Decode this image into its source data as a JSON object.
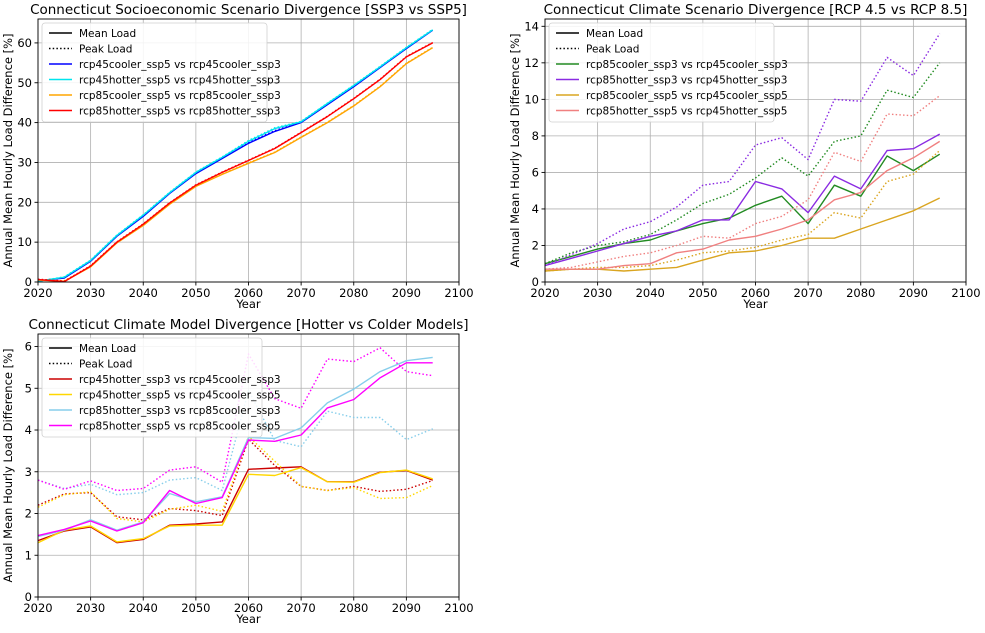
{
  "chart_data": [
    {
      "type": "line",
      "title": "Connecticut Socioeconomic Scenario Divergence [SSP3 vs SSP5]",
      "xlabel": "Year",
      "ylabel": "Annual Mean Hourly Load Difference [%]",
      "xlim": [
        2020,
        2100
      ],
      "ylim": [
        0,
        66
      ],
      "xticks": [
        2020,
        2030,
        2040,
        2050,
        2060,
        2070,
        2080,
        2090,
        2100
      ],
      "yticks": [
        0,
        10,
        20,
        30,
        40,
        50,
        60
      ],
      "grid": true,
      "legend_position": "upper-left",
      "legend": [
        {
          "label": "Mean Load",
          "style": "solid",
          "color": "#000000"
        },
        {
          "label": "Peak Load",
          "style": "dotted",
          "color": "#000000"
        },
        {
          "label": "rcp45cooler_ssp5 vs rcp45cooler_ssp3",
          "color": "#0000ff"
        },
        {
          "label": "rcp45hotter_ssp5 vs rcp45hotter_ssp3",
          "color": "#00e5ee"
        },
        {
          "label": "rcp85cooler_ssp5 vs rcp85cooler_ssp3",
          "color": "#ffa500"
        },
        {
          "label": "rcp85hotter_ssp5 vs rcp85hotter_ssp3",
          "color": "#ff0000"
        }
      ],
      "x": [
        2020,
        2025,
        2030,
        2035,
        2040,
        2045,
        2050,
        2055,
        2060,
        2065,
        2070,
        2075,
        2080,
        2085,
        2090,
        2095
      ],
      "series": [
        {
          "name": "rcp45cooler_ssp5 vs rcp45cooler_ssp3",
          "metric": "mean",
          "color": "#0000ff",
          "values": [
            0.3,
            1.0,
            5.2,
            11.5,
            16.5,
            22.2,
            27.2,
            31.0,
            34.8,
            37.8,
            40.0,
            44.5,
            49.0,
            53.8,
            58.6,
            63.2
          ]
        },
        {
          "name": "rcp45cooler_ssp5 vs rcp45cooler_ssp3",
          "metric": "peak",
          "color": "#0000ff",
          "values": [
            0.3,
            1.1,
            5.3,
            11.6,
            16.6,
            22.3,
            27.3,
            31.2,
            35.0,
            38.0,
            40.1,
            44.6,
            49.1,
            53.9,
            58.7,
            63.3
          ]
        },
        {
          "name": "rcp45hotter_ssp5 vs rcp45hotter_ssp3",
          "metric": "mean",
          "color": "#00e5ee",
          "values": [
            0.2,
            1.2,
            5.4,
            11.7,
            16.8,
            22.4,
            27.5,
            31.3,
            35.3,
            38.5,
            40.2,
            44.8,
            49.3,
            54.0,
            58.8,
            63.3
          ]
        },
        {
          "name": "rcp45hotter_ssp5 vs rcp45hotter_ssp3",
          "metric": "peak",
          "color": "#00e5ee",
          "values": [
            0.2,
            1.3,
            5.5,
            11.8,
            16.9,
            22.5,
            27.6,
            31.4,
            35.5,
            38.7,
            40.3,
            44.9,
            49.4,
            54.1,
            58.9,
            63.4
          ]
        },
        {
          "name": "rcp85cooler_ssp5 vs rcp85cooler_ssp3",
          "metric": "mean",
          "color": "#ffa500",
          "values": [
            0.5,
            0.2,
            3.8,
            9.8,
            14.2,
            19.5,
            24.0,
            27.0,
            29.8,
            32.5,
            36.3,
            40.0,
            44.2,
            49.0,
            54.8,
            58.8
          ]
        },
        {
          "name": "rcp85cooler_ssp5 vs rcp85cooler_ssp3",
          "metric": "peak",
          "color": "#ffa500",
          "values": [
            0.6,
            0.3,
            3.9,
            9.9,
            14.3,
            19.6,
            24.1,
            27.1,
            29.9,
            32.6,
            36.4,
            40.1,
            44.3,
            49.1,
            54.9,
            58.9
          ]
        },
        {
          "name": "rcp85hotter_ssp5 vs rcp85hotter_ssp3",
          "metric": "mean",
          "color": "#ff0000",
          "values": [
            0.6,
            0.1,
            4.0,
            10.0,
            14.5,
            19.8,
            24.3,
            27.5,
            30.5,
            33.5,
            37.5,
            41.5,
            46.0,
            50.8,
            56.5,
            60.0
          ]
        },
        {
          "name": "rcp85hotter_ssp5 vs rcp85hotter_ssp3",
          "metric": "peak",
          "color": "#ff0000",
          "values": [
            0.7,
            0.2,
            4.1,
            10.1,
            14.6,
            19.9,
            24.4,
            27.6,
            30.6,
            33.6,
            37.6,
            41.6,
            46.1,
            50.9,
            56.6,
            60.1
          ]
        }
      ]
    },
    {
      "type": "line",
      "title": "Connecticut Climate Scenario Divergence [RCP 4.5 vs RCP 8.5]",
      "xlabel": "Year",
      "ylabel": "Annual Mean Hourly Load Difference [%]",
      "xlim": [
        2020,
        2100
      ],
      "ylim": [
        0,
        14.4
      ],
      "xticks": [
        2020,
        2030,
        2040,
        2050,
        2060,
        2070,
        2080,
        2090,
        2100
      ],
      "yticks": [
        0,
        2,
        4,
        6,
        8,
        10,
        12,
        14
      ],
      "grid": true,
      "legend_position": "upper-left",
      "legend": [
        {
          "label": "Mean Load",
          "style": "solid",
          "color": "#000000"
        },
        {
          "label": "Peak Load",
          "style": "dotted",
          "color": "#000000"
        },
        {
          "label": "rcp85cooler_ssp3 vs rcp45cooler_ssp3",
          "color": "#228b22"
        },
        {
          "label": "rcp85hotter_ssp3 vs rcp45hotter_ssp3",
          "color": "#8a2be2"
        },
        {
          "label": "rcp85cooler_ssp5 vs rcp45cooler_ssp5",
          "color": "#daa520"
        },
        {
          "label": "rcp85hotter_ssp5 vs rcp45hotter_ssp5",
          "color": "#f08080"
        }
      ],
      "x": [
        2020,
        2025,
        2030,
        2035,
        2040,
        2045,
        2050,
        2055,
        2060,
        2065,
        2070,
        2075,
        2080,
        2085,
        2090,
        2095
      ],
      "series": [
        {
          "name": "rcp85cooler_ssp3 vs rcp45cooler_ssp3",
          "metric": "mean",
          "color": "#228b22",
          "values": [
            1.0,
            1.4,
            1.8,
            2.1,
            2.3,
            2.8,
            3.2,
            3.5,
            4.2,
            4.7,
            3.2,
            5.3,
            4.7,
            6.9,
            6.1,
            7.0
          ]
        },
        {
          "name": "rcp85cooler_ssp3 vs rcp45cooler_ssp3",
          "metric": "peak",
          "color": "#228b22",
          "values": [
            1.0,
            1.6,
            2.0,
            2.2,
            2.6,
            3.4,
            4.3,
            4.8,
            5.7,
            6.8,
            5.8,
            7.7,
            8.0,
            10.5,
            10.1,
            12.0
          ]
        },
        {
          "name": "rcp85hotter_ssp3 vs rcp45hotter_ssp3",
          "metric": "mean",
          "color": "#8a2be2",
          "values": [
            0.9,
            1.3,
            1.7,
            2.1,
            2.5,
            2.8,
            3.4,
            3.4,
            5.5,
            5.1,
            3.8,
            5.8,
            5.1,
            7.2,
            7.3,
            8.1
          ]
        },
        {
          "name": "rcp85hotter_ssp3 vs rcp45hotter_ssp3",
          "metric": "peak",
          "color": "#8a2be2",
          "values": [
            0.9,
            1.5,
            2.1,
            2.9,
            3.3,
            4.1,
            5.3,
            5.5,
            7.5,
            7.9,
            6.7,
            10.0,
            9.9,
            12.3,
            11.3,
            13.6
          ]
        },
        {
          "name": "rcp85cooler_ssp5 vs rcp45cooler_ssp5",
          "metric": "mean",
          "color": "#daa520",
          "values": [
            0.6,
            0.7,
            0.7,
            0.6,
            0.7,
            0.8,
            1.2,
            1.6,
            1.7,
            2.0,
            2.4,
            2.4,
            2.9,
            3.4,
            3.9,
            4.6
          ]
        },
        {
          "name": "rcp85cooler_ssp5 vs rcp45cooler_ssp5",
          "metric": "peak",
          "color": "#daa520",
          "values": [
            0.6,
            0.7,
            0.8,
            0.8,
            0.9,
            1.2,
            1.6,
            1.7,
            1.9,
            2.3,
            2.6,
            3.8,
            3.5,
            5.5,
            5.9,
            7.2
          ]
        },
        {
          "name": "rcp85hotter_ssp5 vs rcp45hotter_ssp5",
          "metric": "mean",
          "color": "#f08080",
          "values": [
            0.7,
            0.7,
            0.7,
            0.9,
            1.0,
            1.6,
            1.8,
            2.3,
            2.5,
            2.9,
            3.4,
            4.5,
            4.9,
            6.1,
            6.8,
            7.7
          ]
        },
        {
          "name": "rcp85hotter_ssp5 vs rcp45hotter_ssp5",
          "metric": "peak",
          "color": "#f08080",
          "values": [
            0.7,
            0.8,
            1.1,
            1.4,
            1.6,
            2.0,
            2.5,
            2.4,
            3.2,
            3.6,
            4.5,
            7.1,
            6.6,
            9.2,
            9.1,
            10.2
          ]
        }
      ]
    },
    {
      "type": "line",
      "title": "Connecticut Climate Model Divergence [Hotter vs Colder Models]",
      "xlabel": "Year",
      "ylabel": "Annual Mean Hourly Load Difference [%]",
      "xlim": [
        2020,
        2100
      ],
      "ylim": [
        0,
        6.3
      ],
      "xticks": [
        2020,
        2030,
        2040,
        2050,
        2060,
        2070,
        2080,
        2090,
        2100
      ],
      "yticks": [
        0,
        1,
        2,
        3,
        4,
        5,
        6
      ],
      "grid": true,
      "legend_position": "upper-left",
      "legend": [
        {
          "label": "Mean Load",
          "style": "solid",
          "color": "#000000"
        },
        {
          "label": "Peak Load",
          "style": "dotted",
          "color": "#000000"
        },
        {
          "label": "rcp45hotter_ssp3 vs rcp45cooler_ssp3",
          "color": "#cc0000"
        },
        {
          "label": "rcp45hotter_ssp5 vs rcp45cooler_ssp5",
          "color": "#ffd700"
        },
        {
          "label": "rcp85hotter_ssp3 vs rcp85cooler_ssp3",
          "color": "#87ceeb"
        },
        {
          "label": "rcp85hotter_ssp5 vs rcp85cooler_ssp5",
          "color": "#ff00ff"
        }
      ],
      "x": [
        2020,
        2025,
        2030,
        2035,
        2040,
        2045,
        2050,
        2055,
        2060,
        2065,
        2070,
        2075,
        2080,
        2085,
        2090,
        2095
      ],
      "series": [
        {
          "name": "rcp45hotter_ssp3 vs rcp45cooler_ssp3",
          "metric": "mean",
          "color": "#cc0000",
          "values": [
            1.35,
            1.58,
            1.68,
            1.3,
            1.38,
            1.72,
            1.75,
            1.8,
            3.06,
            3.09,
            3.12,
            2.76,
            2.76,
            2.99,
            3.03,
            2.8
          ]
        },
        {
          "name": "rcp45hotter_ssp3 vs rcp45cooler_ssp3",
          "metric": "peak",
          "color": "#cc0000",
          "values": [
            2.2,
            2.47,
            2.5,
            1.92,
            1.85,
            2.12,
            2.07,
            1.95,
            3.78,
            3.15,
            2.65,
            2.55,
            2.65,
            2.53,
            2.58,
            2.79
          ]
        },
        {
          "name": "rcp45hotter_ssp5 vs rcp45cooler_ssp5",
          "metric": "mean",
          "color": "#ffd700",
          "values": [
            1.3,
            1.6,
            1.7,
            1.32,
            1.4,
            1.7,
            1.72,
            1.72,
            2.94,
            2.91,
            3.1,
            2.76,
            2.75,
            2.98,
            3.04,
            2.83
          ]
        },
        {
          "name": "rcp45hotter_ssp5 vs rcp45cooler_ssp5",
          "metric": "peak",
          "color": "#ffd700",
          "values": [
            2.15,
            2.45,
            2.52,
            1.88,
            1.8,
            2.1,
            2.2,
            2.05,
            3.85,
            3.25,
            2.65,
            2.55,
            2.62,
            2.36,
            2.38,
            2.67
          ]
        },
        {
          "name": "rcp85hotter_ssp3 vs rcp85cooler_ssp3",
          "metric": "mean",
          "color": "#87ceeb",
          "values": [
            1.45,
            1.6,
            1.85,
            1.6,
            1.8,
            2.48,
            2.28,
            2.4,
            3.82,
            3.8,
            4.05,
            4.65,
            4.98,
            5.4,
            5.66,
            5.74
          ]
        },
        {
          "name": "rcp85hotter_ssp3 vs rcp85cooler_ssp3",
          "metric": "peak",
          "color": "#87ceeb",
          "values": [
            2.8,
            2.6,
            2.7,
            2.45,
            2.5,
            2.8,
            2.86,
            2.55,
            4.95,
            3.75,
            3.6,
            4.45,
            4.3,
            4.3,
            3.77,
            4.03
          ]
        },
        {
          "name": "rcp85hotter_ssp5 vs rcp85cooler_ssp5",
          "metric": "mean",
          "color": "#ff00ff",
          "values": [
            1.47,
            1.62,
            1.82,
            1.58,
            1.78,
            2.55,
            2.24,
            2.38,
            3.76,
            3.73,
            3.88,
            4.53,
            4.73,
            5.25,
            5.61,
            5.61
          ]
        },
        {
          "name": "rcp85hotter_ssp5 vs rcp85cooler_ssp5",
          "metric": "peak",
          "color": "#ff00ff",
          "values": [
            2.8,
            2.58,
            2.78,
            2.55,
            2.6,
            3.04,
            3.12,
            2.75,
            5.82,
            4.75,
            4.52,
            5.7,
            5.64,
            5.97,
            5.4,
            5.3
          ]
        }
      ]
    }
  ]
}
